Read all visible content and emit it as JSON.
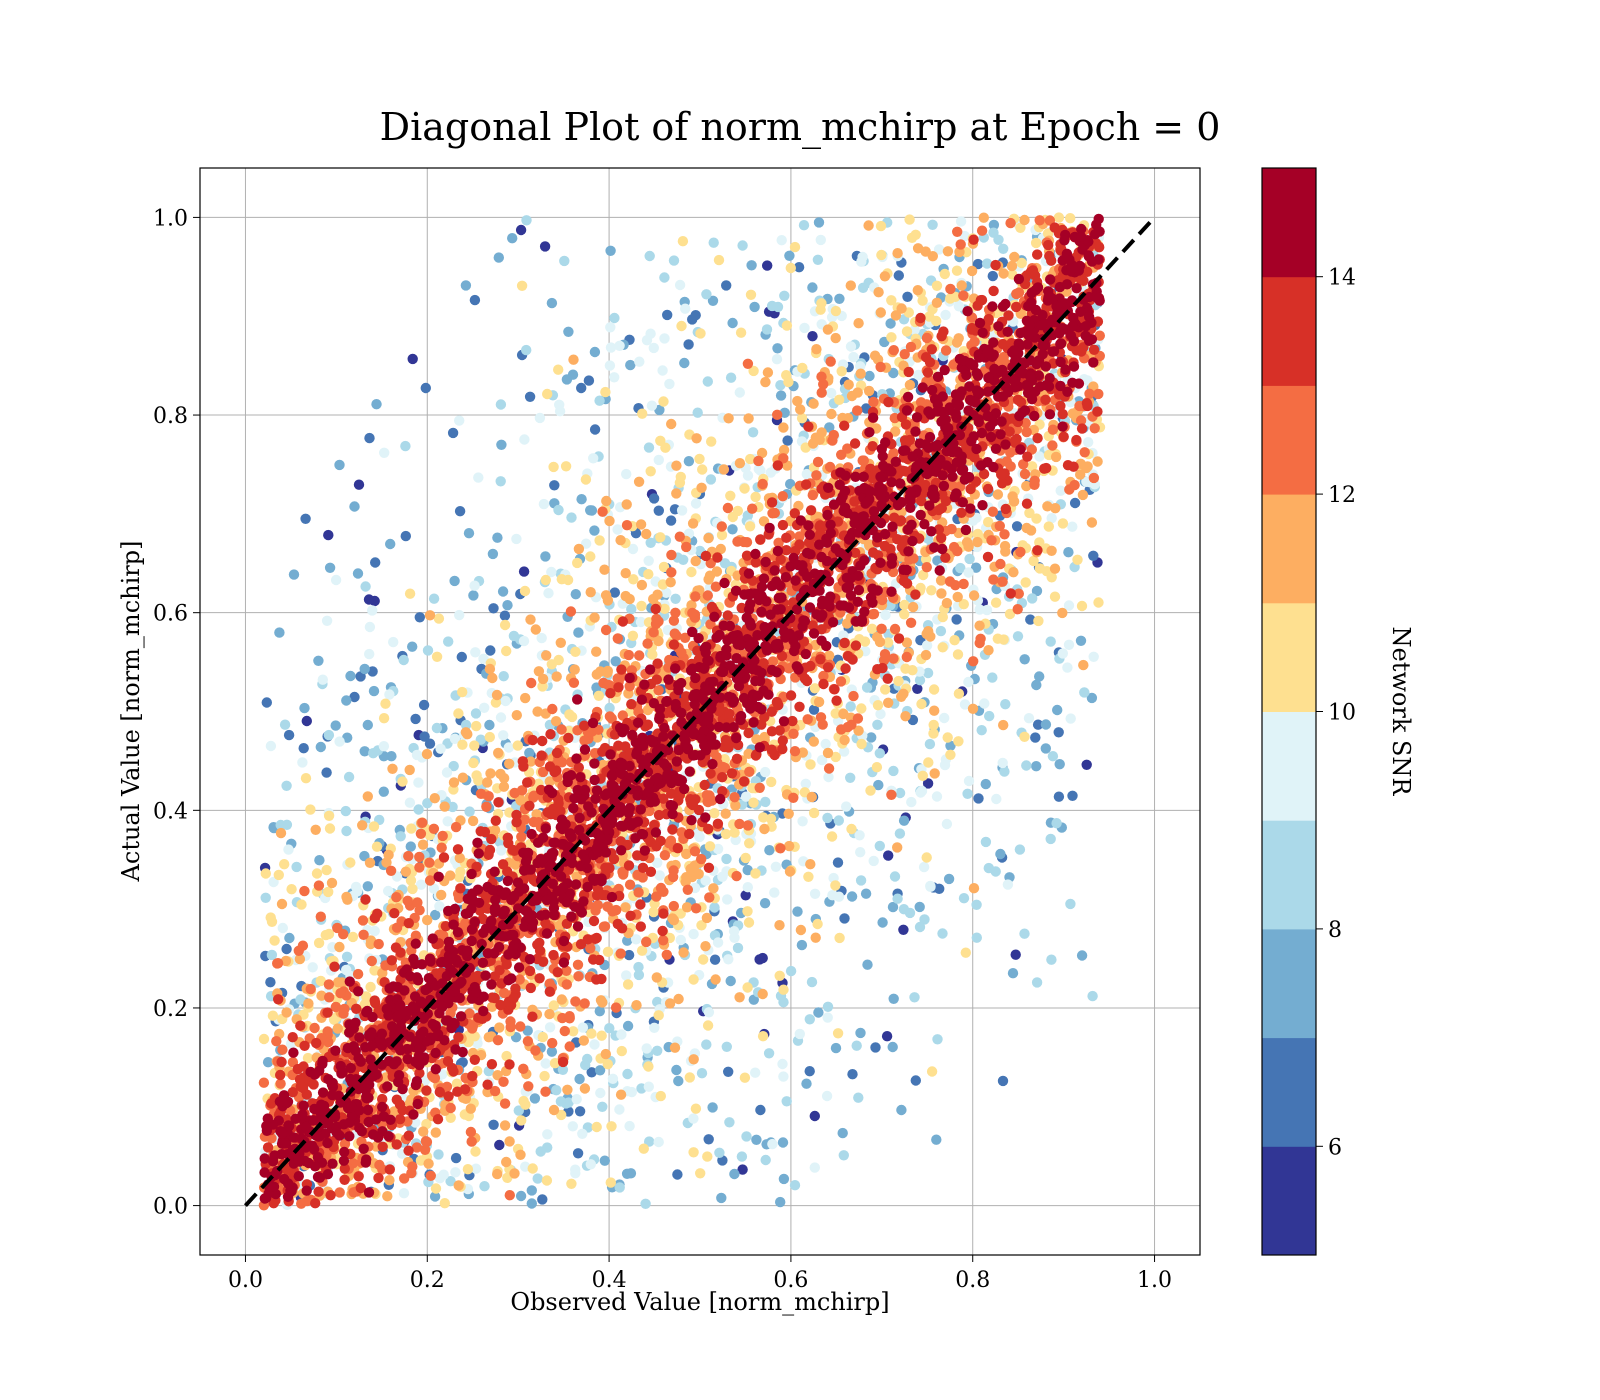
{
  "chart_data": {
    "type": "scatter",
    "title": "Diagonal Plot of norm_mchirp at Epoch = 0",
    "xlabel": "Observed Value [norm_mchirp]",
    "ylabel": "Actual Value [norm_mchirp]",
    "xlim": [
      -0.05,
      1.05
    ],
    "ylim": [
      -0.05,
      1.05
    ],
    "xticks": [
      "0.0",
      "0.2",
      "0.4",
      "0.6",
      "0.8",
      "1.0"
    ],
    "yticks": [
      "0.0",
      "0.2",
      "0.4",
      "0.6",
      "0.8",
      "1.0"
    ],
    "grid": true,
    "reference_line": {
      "from": [
        0,
        0
      ],
      "to": [
        1,
        1
      ],
      "style": "dashed",
      "color": "#000000"
    },
    "colorbar": {
      "label": "Network SNR",
      "min": 5,
      "max": 15,
      "ticks": [
        "6",
        "8",
        "10",
        "12",
        "14"
      ],
      "colors": [
        "#313695",
        "#4575b4",
        "#74add1",
        "#abd9e9",
        "#e0f3f8",
        "#fee090",
        "#fdae61",
        "#f46d43",
        "#d73027",
        "#a50026"
      ]
    },
    "points_description": {
      "x_range": [
        0.02,
        0.94
      ],
      "y_range": [
        0.0,
        1.0
      ],
      "high_snr_near_diagonal": true,
      "low_snr_scattered": true
    }
  }
}
